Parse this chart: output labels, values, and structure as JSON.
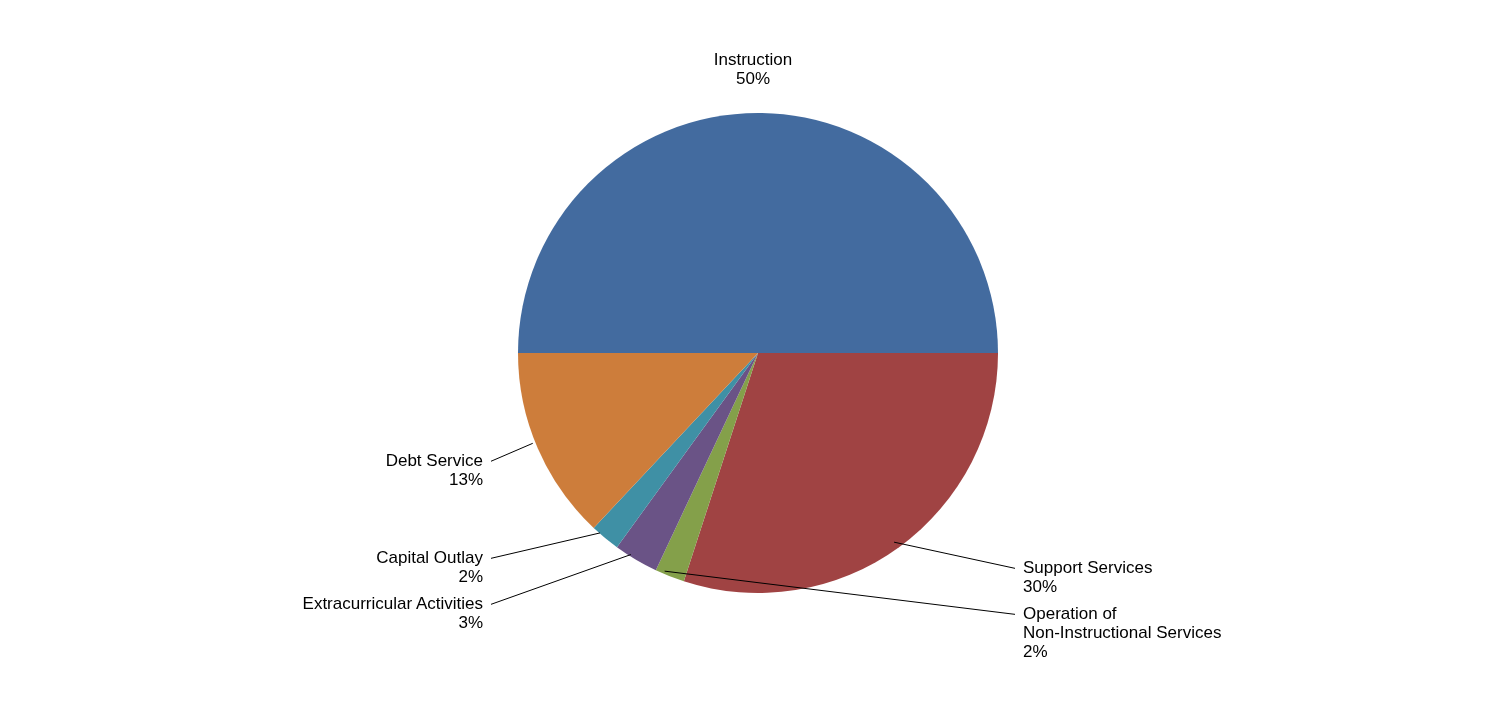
{
  "chart_data": {
    "type": "pie",
    "categories": [
      "Instruction",
      "Support Services",
      "Operation of\nNon-Instructional Services",
      "Extracurricular Activities",
      "Capital Outlay",
      "Debt Service"
    ],
    "values": [
      50,
      30,
      2,
      3,
      2,
      13
    ],
    "colors": [
      "#436b9f",
      "#a04343",
      "#84a04a",
      "#6a5386",
      "#3f90a5",
      "#cd7d3b"
    ],
    "value_labels": [
      "50%",
      "30%",
      "2%",
      "3%",
      "2%",
      "13%"
    ]
  }
}
